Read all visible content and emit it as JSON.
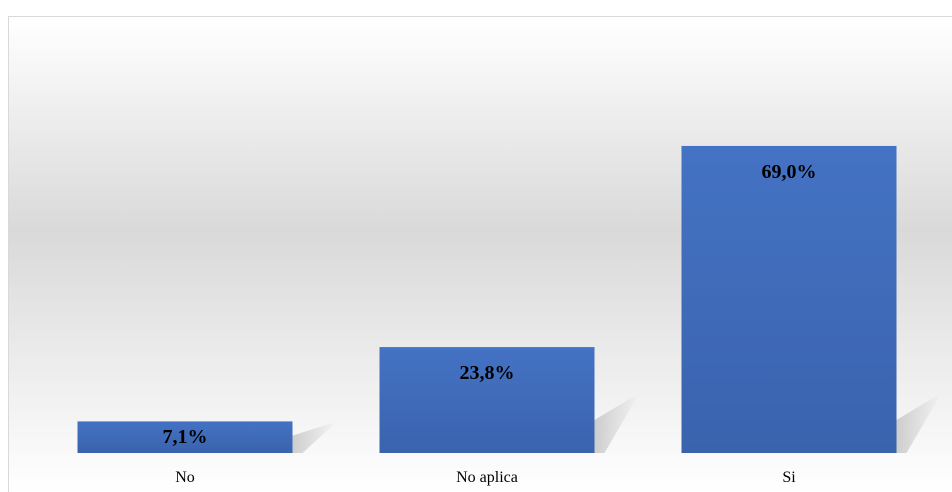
{
  "chart_data": {
    "type": "bar",
    "categories": [
      "No",
      "No aplica",
      "Si"
    ],
    "values": [
      7.1,
      23.8,
      69.0
    ],
    "data_labels": [
      "7,1%",
      "23,8%",
      "69,0%"
    ],
    "ylim": [
      0,
      80
    ],
    "unit": "%",
    "grid": false,
    "legend": "none",
    "colors": {
      "bar": "#4472c4",
      "bar_dark": "#3a63ad",
      "background_light": "#ffffff",
      "background_mid": "#d9d9d9",
      "shadow": "#c8c8c8"
    }
  }
}
